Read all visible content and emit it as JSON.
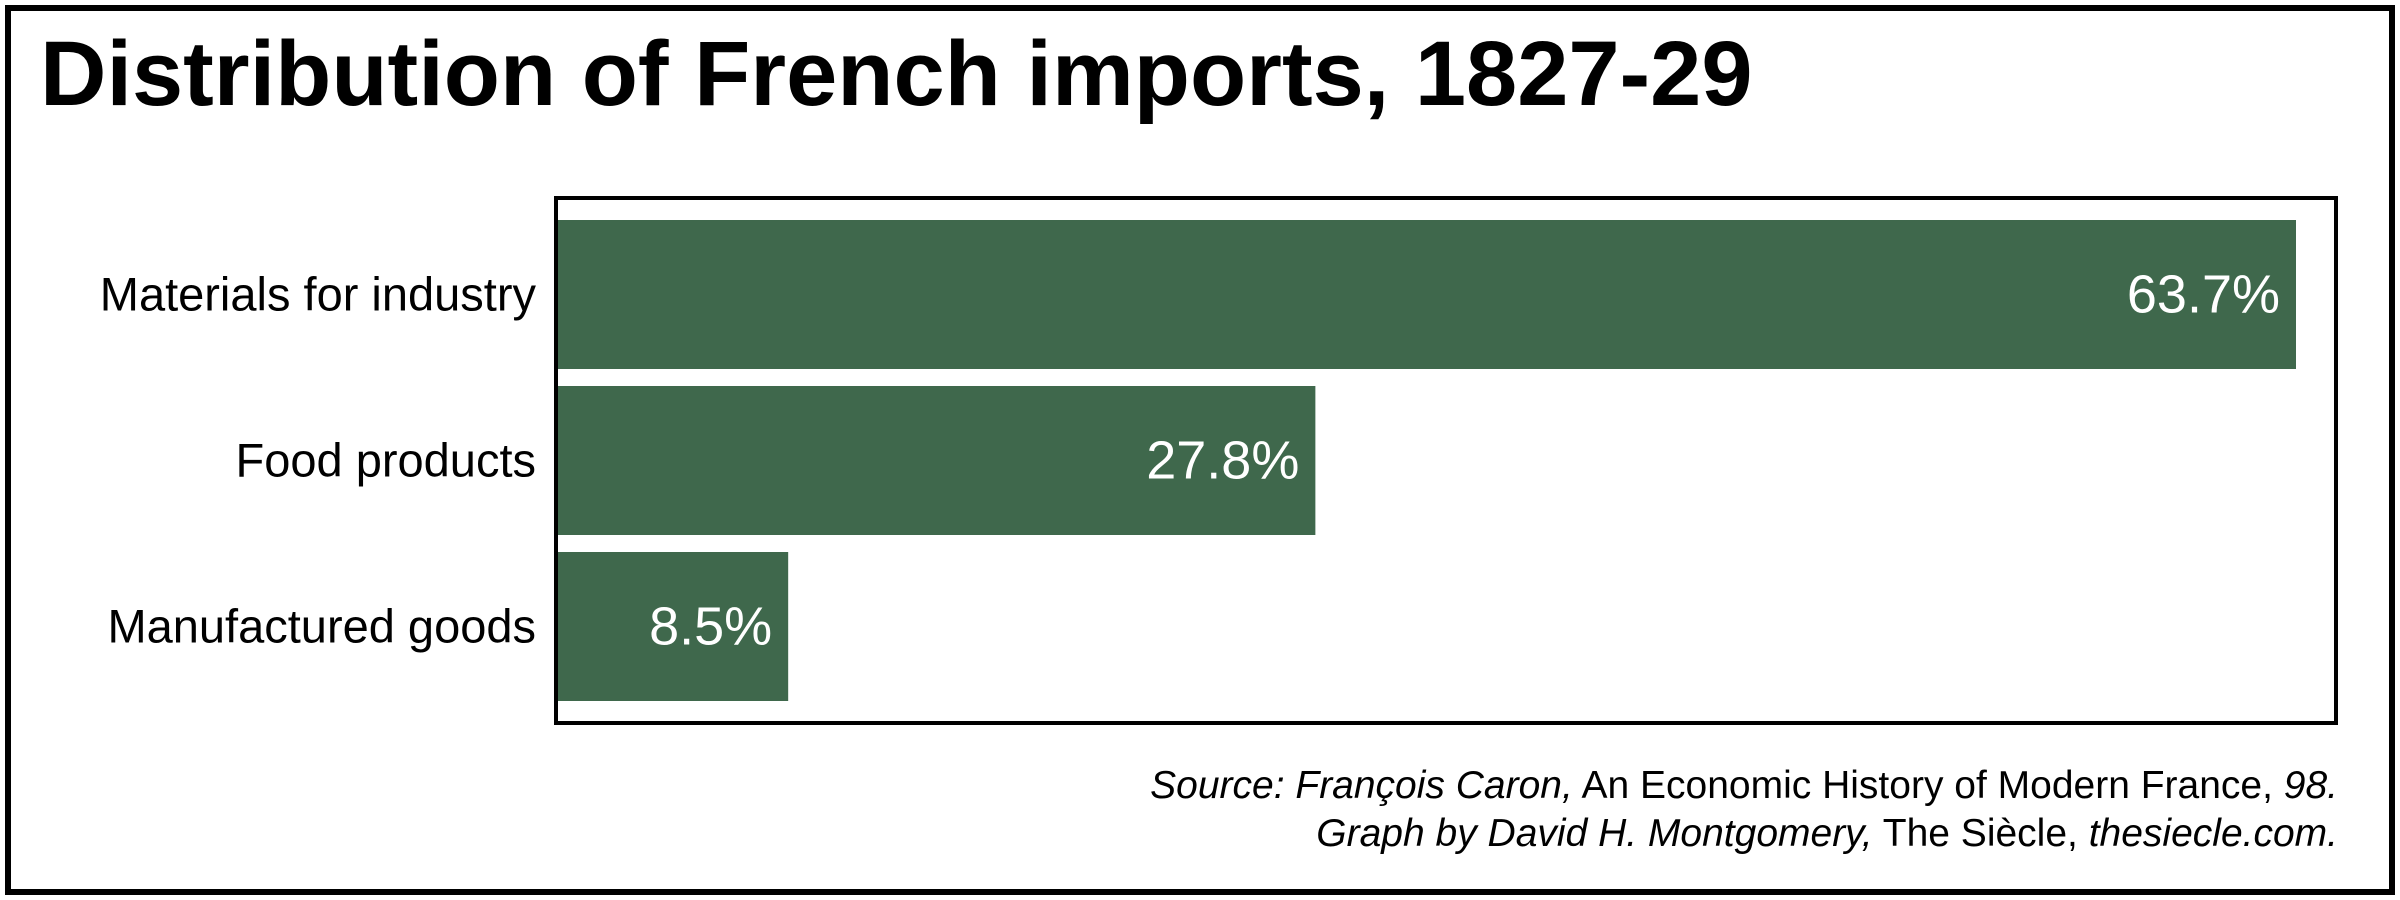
{
  "title": "Distribution of French imports, 1827-29",
  "chart_data": {
    "type": "bar",
    "orientation": "horizontal",
    "title": "Distribution of French imports, 1827-29",
    "xlabel": "",
    "ylabel": "",
    "categories": [
      "Materials for industry",
      "Food products",
      "Manufactured goods"
    ],
    "values": [
      63.7,
      27.8,
      8.5
    ],
    "labels": [
      "63.7%",
      "27.8%",
      "8.5%"
    ],
    "xlim": [
      0,
      65
    ],
    "grid": false,
    "bar_color": "#3f684c",
    "label_color": "#ffffff"
  },
  "source": {
    "line1_prefix": "Source: François Caron,",
    "line1_book": "An Economic History of Modern France,",
    "line1_page": "98.",
    "line2_prefix": "Graph by David H. Montgomery,",
    "line2_pub": "The Siècle,",
    "line2_site": "thesiecle.com."
  }
}
